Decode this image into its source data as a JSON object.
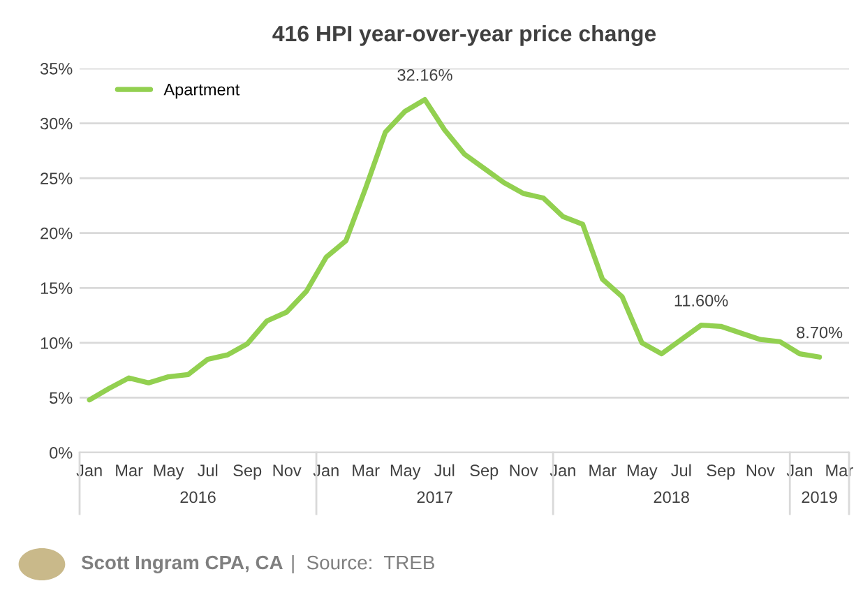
{
  "chart_data": {
    "type": "line",
    "title": "416 HPI year-over-year price change",
    "categories": [
      "Jan",
      null,
      "Mar",
      null,
      "May",
      null,
      "Jul",
      null,
      "Sep",
      null,
      "Nov",
      null,
      "Jan",
      null,
      "Mar",
      null,
      "May",
      null,
      "Jul",
      null,
      "Sep",
      null,
      "Nov",
      null,
      "Jan",
      null,
      "Mar",
      null,
      "May",
      null,
      "Jul",
      null,
      "Sep",
      null,
      "Nov",
      null,
      "Jan",
      null,
      "Mar"
    ],
    "series": [
      {
        "name": "Apartment",
        "color": "#92d050",
        "values": [
          4.8,
          5.85,
          6.8,
          6.35,
          6.9,
          7.1,
          8.5,
          8.9,
          9.9,
          12.0,
          12.8,
          14.7,
          17.8,
          19.3,
          24.1,
          29.2,
          31.1,
          32.16,
          29.4,
          27.2,
          25.9,
          24.6,
          23.6,
          23.2,
          21.5,
          20.8,
          15.8,
          14.2,
          10.0,
          9.0,
          10.3,
          11.6,
          11.5,
          10.9,
          10.3,
          10.1,
          9.0,
          8.7,
          null
        ],
        "value_labels": [
          null,
          null,
          null,
          null,
          null,
          null,
          null,
          null,
          null,
          null,
          null,
          null,
          null,
          null,
          null,
          null,
          null,
          "32.16%",
          null,
          null,
          null,
          null,
          null,
          null,
          null,
          null,
          null,
          null,
          null,
          null,
          null,
          "11.60%",
          null,
          null,
          null,
          null,
          null,
          "8.70%",
          null
        ]
      }
    ],
    "ylim": [
      0,
      35
    ],
    "yticks": [
      {
        "value": 0,
        "label": "0%"
      },
      {
        "value": 5,
        "label": "5%"
      },
      {
        "value": 10,
        "label": "10%"
      },
      {
        "value": 15,
        "label": "15%"
      },
      {
        "value": 20,
        "label": "20%"
      },
      {
        "value": 25,
        "label": "25%"
      },
      {
        "value": 30,
        "label": "30%"
      },
      {
        "value": 35,
        "label": "35%"
      }
    ],
    "grid": "y",
    "legend": "top left",
    "marker": "none",
    "line_style": "solid",
    "annotations": [
      "2016",
      "2017",
      "2018",
      "2019",
      "Scott Ingram CPA, CA",
      "|  Source:  TREB"
    ]
  }
}
